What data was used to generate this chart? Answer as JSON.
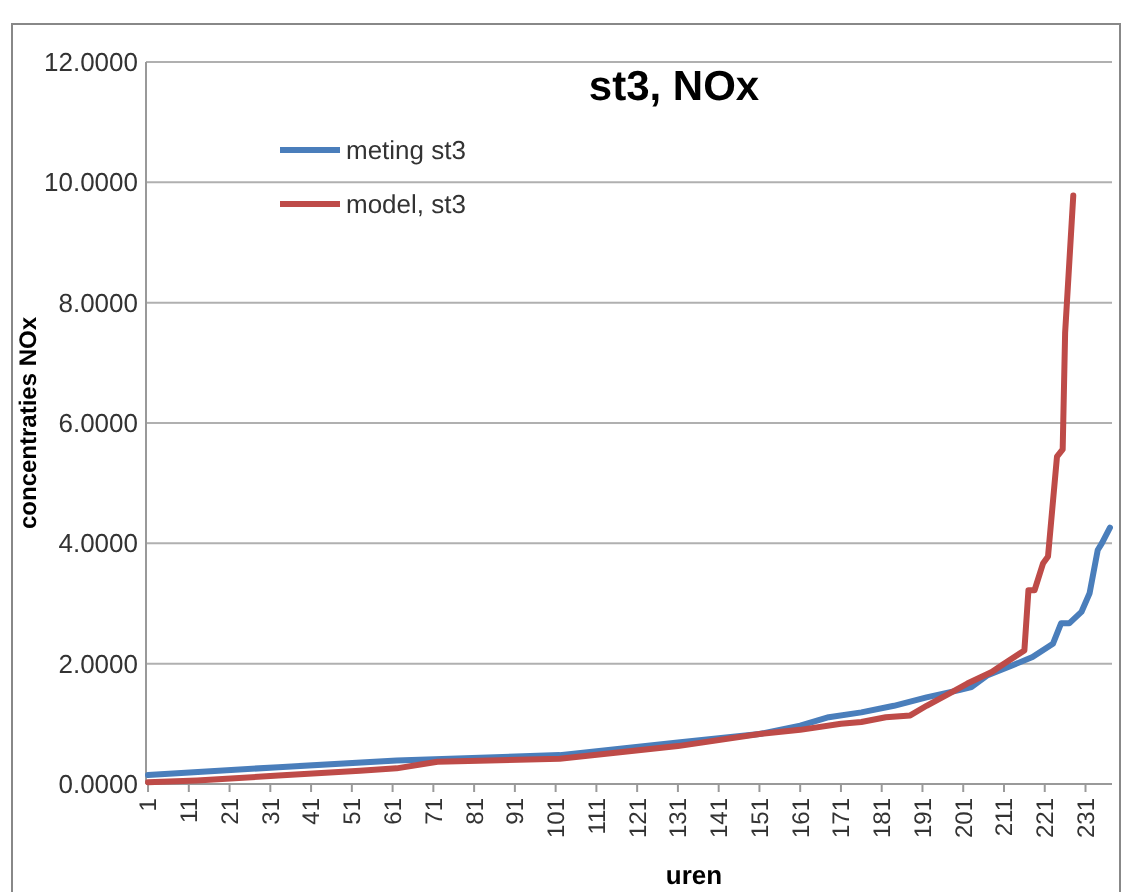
{
  "chart_data": {
    "type": "line",
    "title": "st3, NOx",
    "xlabel": "uren",
    "ylabel": "concentraties NOx",
    "xlim": [
      0.5,
      237.5
    ],
    "xticks": [
      1,
      11,
      21,
      31,
      41,
      51,
      61,
      71,
      81,
      91,
      101,
      111,
      121,
      131,
      141,
      151,
      161,
      171,
      181,
      191,
      201,
      211,
      221,
      231
    ],
    "ylim": [
      0,
      12
    ],
    "yticks": [
      {
        "value": 0,
        "label": "0.0000"
      },
      {
        "value": 2,
        "label": "2.0000"
      },
      {
        "value": 4,
        "label": "4.0000"
      },
      {
        "value": 6,
        "label": "6.0000"
      },
      {
        "value": 8,
        "label": "8.0000"
      },
      {
        "value": 10,
        "label": "10.0000"
      },
      {
        "value": 12,
        "label": "12.0000"
      }
    ],
    "grid": "y",
    "legend": "top left",
    "marker": "none",
    "line_style": "solid",
    "series": [
      {
        "name": "meting st3",
        "color": "#4a7ebb",
        "x": [
          1,
          33,
          62,
          102,
          131,
          151,
          161,
          168,
          176,
          184,
          192,
          200,
          203,
          207,
          213,
          218,
          223,
          225,
          227,
          230,
          232,
          234,
          235,
          237
        ],
        "values": [
          0.15,
          0.28,
          0.39,
          0.48,
          0.69,
          0.83,
          0.97,
          1.11,
          1.19,
          1.3,
          1.44,
          1.56,
          1.61,
          1.81,
          1.97,
          2.11,
          2.33,
          2.67,
          2.67,
          2.86,
          3.17,
          3.89,
          4.0,
          4.26
        ]
      },
      {
        "name": "model, st3",
        "color": "#be4b48",
        "x": [
          1,
          13,
          33,
          53,
          62,
          72,
          102,
          131,
          151,
          161,
          171,
          176,
          182,
          188,
          192,
          198,
          202,
          208,
          211,
          216,
          217,
          218.5,
          220.6,
          221.8,
          224,
          225.4,
          226,
          228
        ],
        "values": [
          0.03,
          0.06,
          0.14,
          0.22,
          0.26,
          0.37,
          0.42,
          0.63,
          0.83,
          0.9,
          1.0,
          1.03,
          1.11,
          1.14,
          1.3,
          1.52,
          1.67,
          1.86,
          2.0,
          2.22,
          3.22,
          3.22,
          3.67,
          3.78,
          5.44,
          5.56,
          7.5,
          9.78
        ]
      }
    ]
  }
}
